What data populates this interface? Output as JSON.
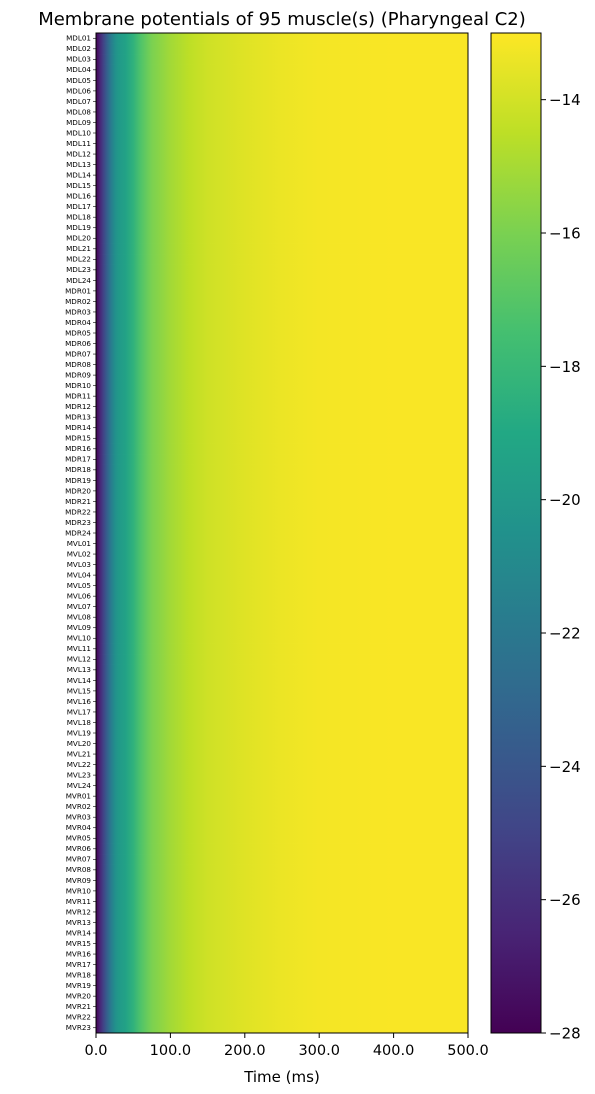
{
  "chart_data": {
    "type": "heatmap",
    "title": "Membrane potentials of 95 muscle(s) (Pharyngeal C2)",
    "xlabel": "Time (ms)",
    "ylabel": "",
    "xlim": [
      0,
      500
    ],
    "x_ticks": [
      0,
      100,
      200,
      300,
      400,
      500
    ],
    "x_tick_labels": [
      "0.0",
      "100.0",
      "200.0",
      "300.0",
      "400.0",
      "500.0"
    ],
    "rows": [
      "MDL01",
      "MDL02",
      "MDL03",
      "MDL04",
      "MDL05",
      "MDL06",
      "MDL07",
      "MDL08",
      "MDL09",
      "MDL10",
      "MDL11",
      "MDL12",
      "MDL13",
      "MDL14",
      "MDL15",
      "MDL16",
      "MDL17",
      "MDL18",
      "MDL19",
      "MDL20",
      "MDL21",
      "MDL22",
      "MDL23",
      "MDL24",
      "MDR01",
      "MDR02",
      "MDR03",
      "MDR04",
      "MDR05",
      "MDR06",
      "MDR07",
      "MDR08",
      "MDR09",
      "MDR10",
      "MDR11",
      "MDR12",
      "MDR13",
      "MDR14",
      "MDR15",
      "MDR16",
      "MDR17",
      "MDR18",
      "MDR19",
      "MDR20",
      "MDR21",
      "MDR22",
      "MDR23",
      "MDR24",
      "MVL01",
      "MVL02",
      "MVL03",
      "MVL04",
      "MVL05",
      "MVL06",
      "MVL07",
      "MVL08",
      "MVL09",
      "MVL10",
      "MVL11",
      "MVL12",
      "MVL13",
      "MVL14",
      "MVL15",
      "MVL16",
      "MVL17",
      "MVL18",
      "MVL19",
      "MVL20",
      "MVL21",
      "MVL22",
      "MVL23",
      "MVL24",
      "MVR01",
      "MVR02",
      "MVR03",
      "MVR04",
      "MVR05",
      "MVR06",
      "MVR07",
      "MVR08",
      "MVR09",
      "MVR10",
      "MVR11",
      "MVR12",
      "MVR13",
      "MVR14",
      "MVR15",
      "MVR16",
      "MVR17",
      "MVR18",
      "MVR19",
      "MVR20",
      "MVR21",
      "MVR22",
      "MVR23"
    ],
    "time_profile": {
      "time_ms": [
        0,
        5,
        10,
        15,
        20,
        25,
        30,
        40,
        50,
        60,
        75,
        100,
        125,
        150,
        200,
        250,
        300,
        400,
        500
      ],
      "potential_mV": [
        -28,
        -26.5,
        -25,
        -23.3,
        -21.8,
        -20.7,
        -20,
        -19.4,
        -18.4,
        -17.2,
        -16,
        -15.1,
        -14.5,
        -14.1,
        -13.7,
        -13.4,
        -13.2,
        -13.1,
        -13.1
      ]
    },
    "colorbar": {
      "min": -28,
      "max": -13,
      "ticks": [
        -28,
        -26,
        -24,
        -22,
        -20,
        -18,
        -16,
        -14
      ],
      "tick_labels": [
        "−28",
        "−26",
        "−24",
        "−22",
        "−20",
        "−18",
        "−16",
        "−14"
      ],
      "colormap": "viridis"
    },
    "grid": false
  }
}
